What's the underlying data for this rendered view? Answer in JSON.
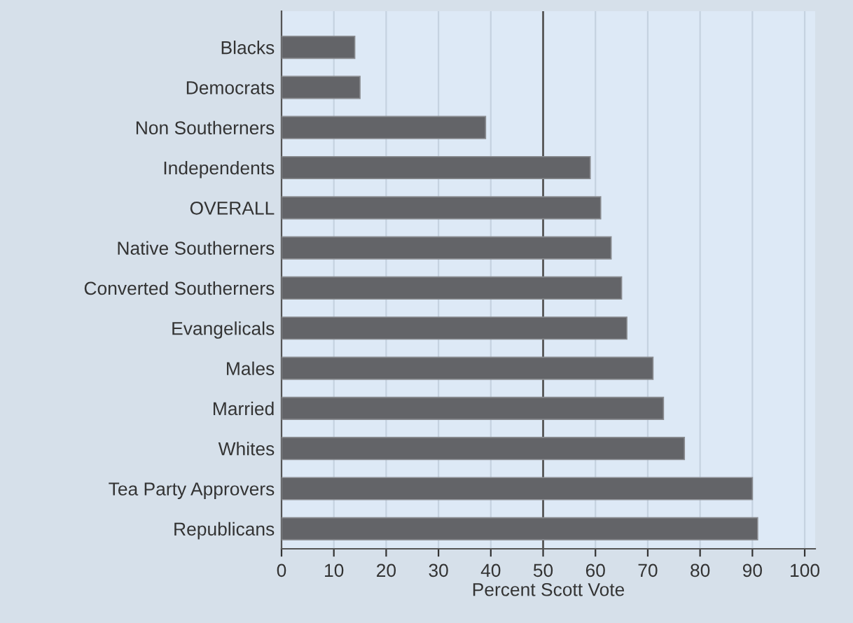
{
  "chart_data": {
    "type": "bar",
    "orientation": "horizontal",
    "xlabel": "Percent Scott Vote",
    "categories": [
      "Blacks",
      "Democrats",
      "Non Southerners",
      "Independents",
      "OVERALL",
      "Native Southerners",
      "Converted Southerners",
      "Evangelicals",
      "Males",
      "Married",
      "Whites",
      "Tea Party Approvers",
      "Republicans"
    ],
    "values": [
      14,
      15,
      39,
      59,
      61,
      63,
      65,
      66,
      71,
      73,
      77,
      90,
      91
    ],
    "color": "#636468",
    "xlim": [
      0,
      102
    ],
    "xticks": [
      0,
      10,
      20,
      30,
      40,
      50,
      60,
      70,
      80,
      90,
      100
    ],
    "grid": "x",
    "ref_lines": [
      {
        "axis": "x",
        "value": 50,
        "color": "#555555"
      }
    ]
  }
}
